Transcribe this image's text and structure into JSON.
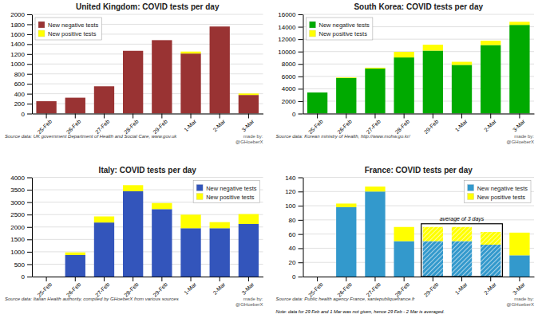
{
  "chart_data": [
    {
      "type": "bar",
      "stacked": true,
      "title": "United Kingdom: COVID tests per day",
      "categories": [
        "25-Feb",
        "26-Feb",
        "27-Feb",
        "28-Feb",
        "29-Feb",
        "1-Mar",
        "2-Mar",
        "3-Mar"
      ],
      "series": [
        {
          "name": "New negative tests",
          "color": "#993333",
          "values": [
            250,
            320,
            550,
            1265,
            1480,
            1210,
            1755,
            375
          ]
        },
        {
          "name": "New positive tests",
          "color": "#ffff00",
          "values": [
            0,
            0,
            0,
            0,
            0,
            40,
            0,
            30
          ]
        }
      ],
      "ylim": [
        0,
        2000
      ],
      "yticks": [
        0,
        200,
        400,
        600,
        800,
        1000,
        1200,
        1400,
        1600,
        1800,
        2000
      ],
      "grid": true,
      "legend": "upper left",
      "source": "Source data: UK government Department of Health and Social Care, www.gov.uk",
      "credit": "made by:\n@GHoeberX"
    },
    {
      "type": "bar",
      "stacked": true,
      "title": "South Korea: COVID tests per day",
      "categories": [
        "25-Feb",
        "26-Feb",
        "27-Feb",
        "28-Feb",
        "29-Feb",
        "1-Mar",
        "2-Mar",
        "3-Mar"
      ],
      "series": [
        {
          "name": "New negative tests",
          "color": "#00aa00",
          "values": [
            3400,
            5750,
            7250,
            9050,
            10150,
            7850,
            11050,
            14300
          ]
        },
        {
          "name": "New positive tests",
          "color": "#ffff00",
          "values": [
            0,
            100,
            150,
            900,
            950,
            500,
            700,
            500
          ]
        }
      ],
      "ylim": [
        0,
        16000
      ],
      "yticks": [
        0,
        2000,
        4000,
        6000,
        8000,
        10000,
        12000,
        14000,
        16000
      ],
      "grid": true,
      "legend": "upper left",
      "source": "Source data: Korean ministry of Health, http://www.mohw.go.kr/",
      "credit": "made by:\n@GHoeberX"
    },
    {
      "type": "bar",
      "stacked": true,
      "title": "Italy: COVID tests per day",
      "categories": [
        "25-Feb",
        "26-Feb",
        "27-Feb",
        "28-Feb",
        "29-Feb",
        "1-Mar",
        "2-Mar",
        "3-Mar"
      ],
      "series": [
        {
          "name": "New negative tests",
          "color": "#3355bb",
          "values": [
            0,
            870,
            2180,
            3440,
            2720,
            1950,
            1950,
            2120
          ]
        },
        {
          "name": "New positive tests",
          "color": "#ffff00",
          "values": [
            0,
            105,
            245,
            245,
            245,
            545,
            245,
            400
          ]
        }
      ],
      "ylim": [
        0,
        4000
      ],
      "yticks": [
        0,
        500,
        1000,
        1500,
        2000,
        2500,
        3000,
        3500,
        4000
      ],
      "grid": true,
      "legend": "upper right",
      "source": "Source data: Italian Health authority, compiled by GHoeberX from various sources",
      "credit": "made by:\n@GHoeberX"
    },
    {
      "type": "bar",
      "stacked": true,
      "title": "France: COVID tests per day",
      "categories": [
        "25-Feb",
        "26-Feb",
        "27-Feb",
        "28-Feb",
        "29-Feb",
        "1-Mar",
        "2-Mar",
        "3-Mar"
      ],
      "series": [
        {
          "name": "New negative tests",
          "color": "#3399cc",
          "values": [
            0,
            98,
            120,
            50,
            50,
            50,
            45,
            30
          ]
        },
        {
          "name": "New positive tests",
          "color": "#ffff00",
          "values": [
            0,
            5,
            7,
            20,
            20,
            20,
            18,
            32
          ]
        }
      ],
      "ylim": [
        0,
        140
      ],
      "yticks": [
        0,
        20,
        40,
        60,
        80,
        100,
        120,
        140
      ],
      "grid": true,
      "legend": "upper right",
      "annotations": [
        {
          "text": "average of 3 days",
          "categories": [
            "29-Feb",
            "1-Mar",
            "2-Mar"
          ]
        }
      ],
      "source": "Source data: Public health agency France, santepubliquefrance.fr",
      "credit": "made by:\n@GHoeberX",
      "note": "Note: data for 29 Feb and 1 Mar was not given, hence 29 Feb - 2 Mar is averaged."
    }
  ]
}
